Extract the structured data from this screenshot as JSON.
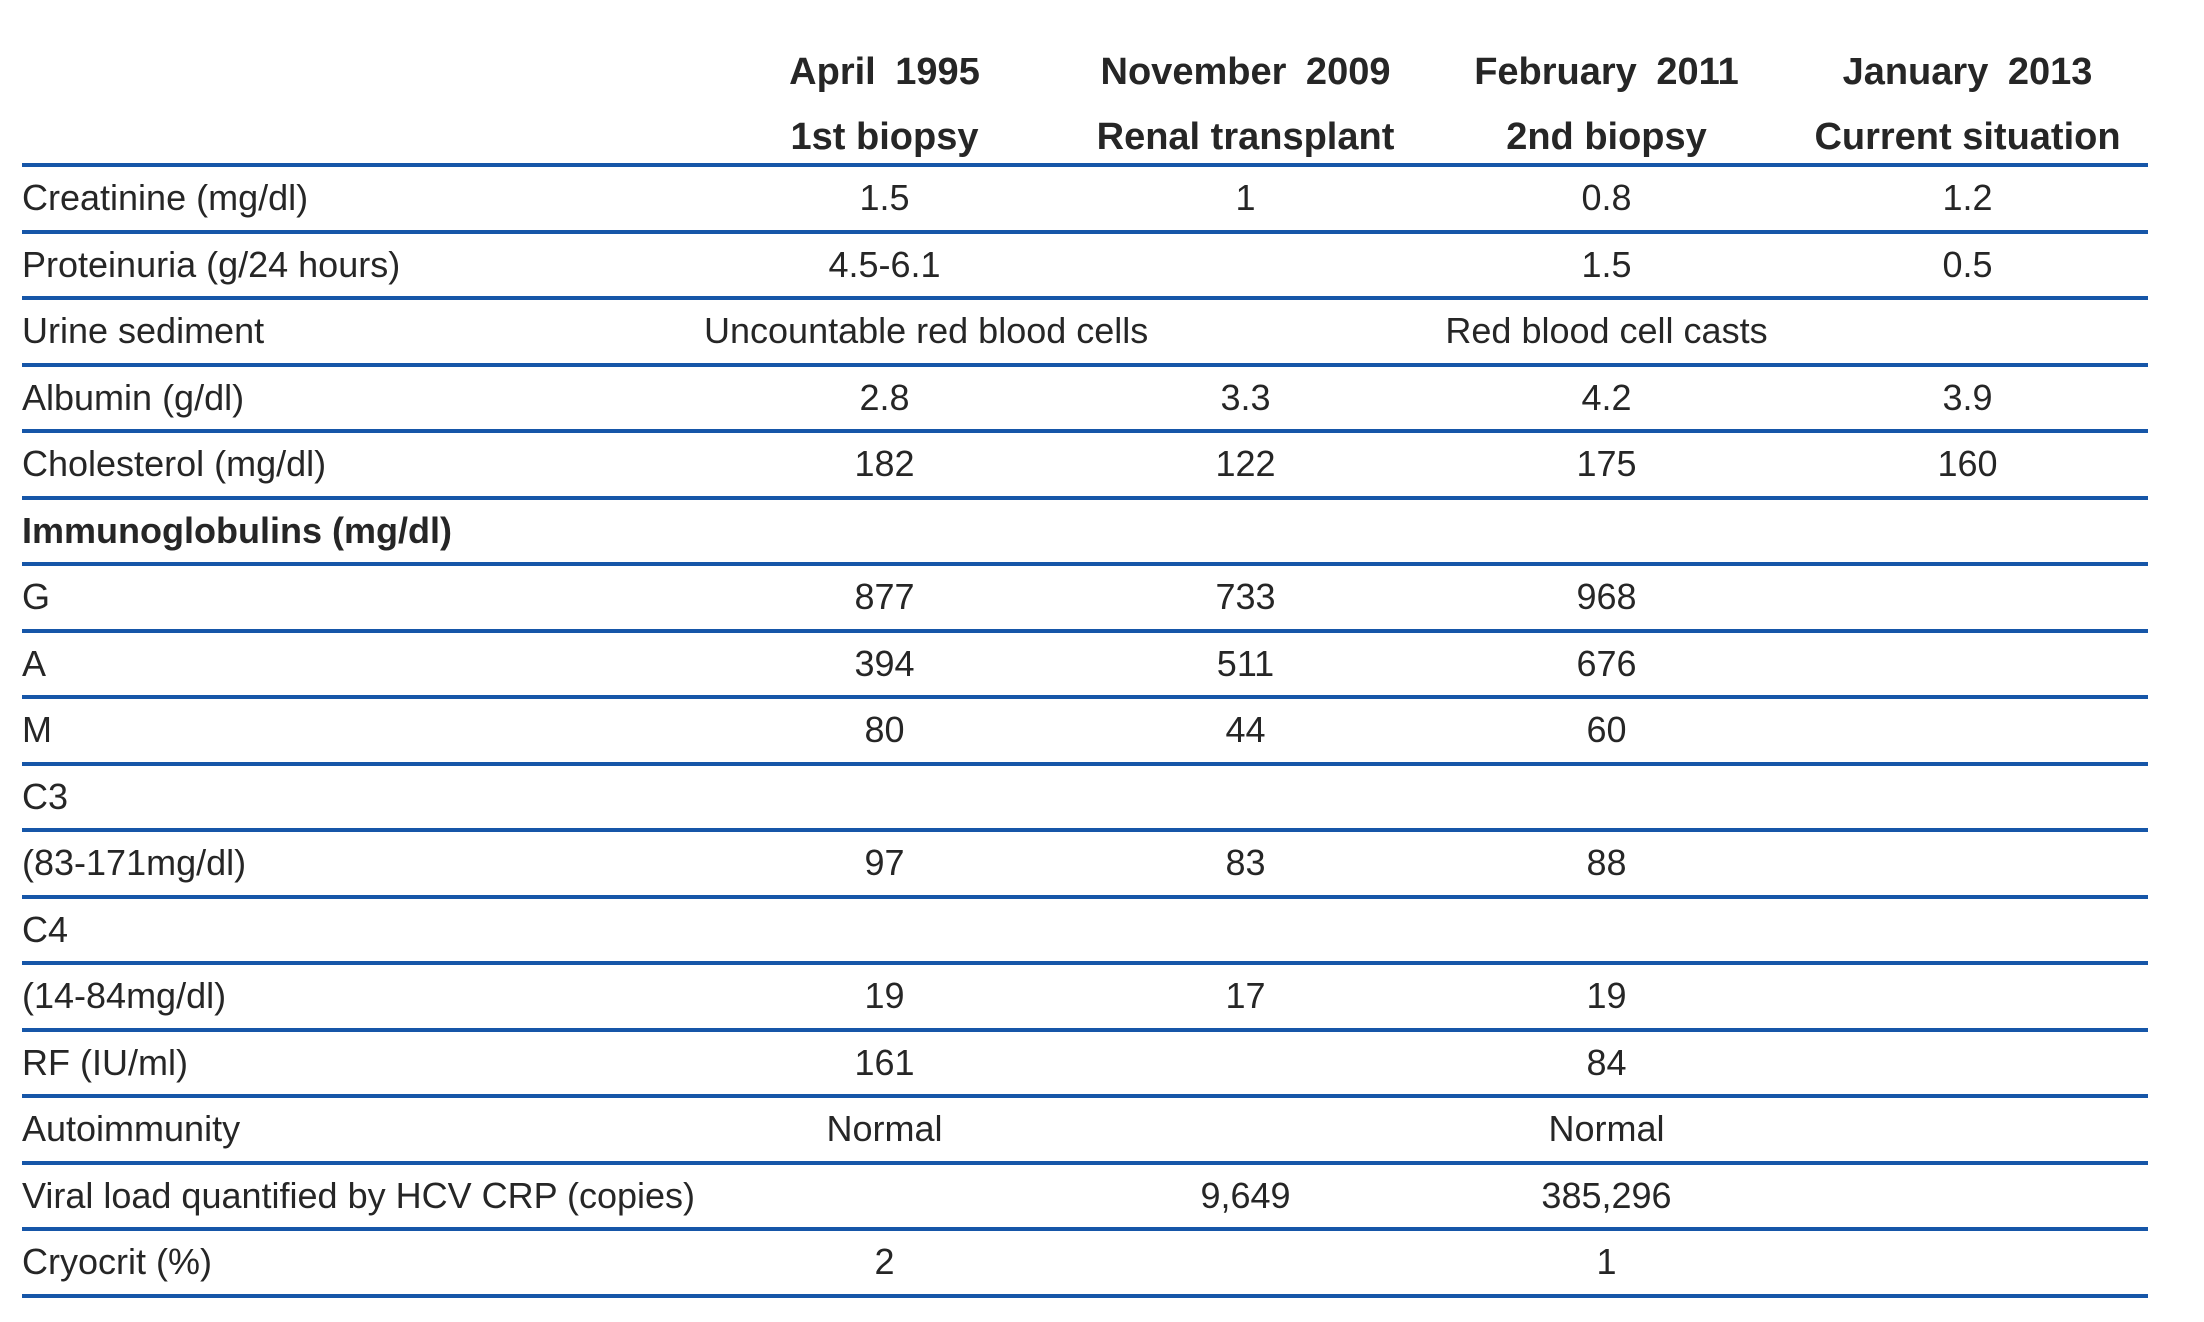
{
  "colors": {
    "rule": "#1656a8",
    "text": "#262626"
  },
  "table": {
    "columns": [
      {
        "date": "April 1995",
        "label": "1st biopsy"
      },
      {
        "date": "November 2009",
        "label": "Renal transplant"
      },
      {
        "date": "February 2011",
        "label": "2nd biopsy"
      },
      {
        "date": "January 2013",
        "label": "Current situation"
      }
    ],
    "rows": [
      {
        "label": "Creatinine (mg/dl)",
        "bold": false,
        "values": [
          "1.5",
          "1",
          "0.8",
          "1.2"
        ]
      },
      {
        "label": "Proteinuria (g/24 hours)",
        "bold": false,
        "values": [
          "4.5-6.1",
          "",
          "1.5",
          "0.5"
        ]
      },
      {
        "label": "Urine sediment",
        "bold": false,
        "values": [
          "Uncountable red blood cells",
          "",
          "Red blood cell casts",
          ""
        ]
      },
      {
        "label": "Albumin (g/dl)",
        "bold": false,
        "values": [
          "2.8",
          "3.3",
          "4.2",
          "3.9"
        ]
      },
      {
        "label": "Cholesterol (mg/dl)",
        "bold": false,
        "values": [
          "182",
          "122",
          "175",
          "160"
        ]
      },
      {
        "label": "Immunoglobulins (mg/dl)",
        "bold": true,
        "values": [
          "",
          "",
          "",
          ""
        ]
      },
      {
        "label": "G",
        "bold": false,
        "values": [
          "877",
          "733",
          "968",
          ""
        ]
      },
      {
        "label": "A",
        "bold": false,
        "values": [
          "394",
          "511",
          "676",
          ""
        ]
      },
      {
        "label": "M",
        "bold": false,
        "values": [
          "80",
          "44",
          "60",
          ""
        ]
      },
      {
        "label": "C3",
        "bold": false,
        "values": [
          "",
          "",
          "",
          ""
        ]
      },
      {
        "label": "(83-171mg/dl)",
        "bold": false,
        "values": [
          "97",
          "83",
          "88",
          ""
        ]
      },
      {
        "label": "C4",
        "bold": false,
        "values": [
          "",
          "",
          "",
          ""
        ]
      },
      {
        "label": "(14-84mg/dl)",
        "bold": false,
        "values": [
          "19",
          "17",
          "19",
          ""
        ]
      },
      {
        "label": "RF (IU/ml)",
        "bold": false,
        "values": [
          "161",
          "",
          "84",
          ""
        ]
      },
      {
        "label": "Autoimmunity",
        "bold": false,
        "values": [
          "Normal",
          "",
          "Normal",
          ""
        ]
      },
      {
        "label": "Viral load quantified by HCV CRP (copies)",
        "bold": false,
        "values": [
          "",
          "9,649",
          "385,296",
          ""
        ]
      },
      {
        "label": "Cryocrit (%)",
        "bold": false,
        "values": [
          "2",
          "",
          "1",
          ""
        ]
      }
    ]
  }
}
